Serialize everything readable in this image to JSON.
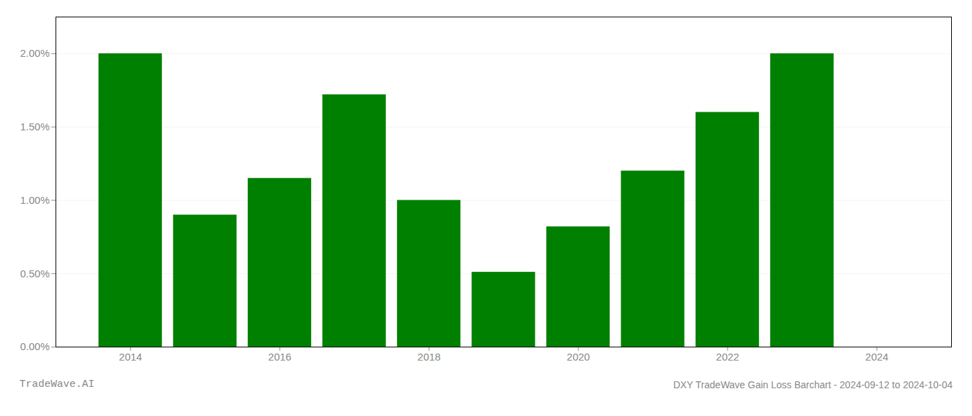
{
  "chart_data": {
    "type": "bar",
    "title": "DXY TradeWave Gain Loss Barchart - 2024-09-12 to 2024-10-04",
    "annotations": [
      "TradeWave.AI"
    ],
    "x": [
      2014,
      2015,
      2016,
      2017,
      2018,
      2019,
      2020,
      2021,
      2022,
      2023
    ],
    "values": [
      0.02,
      0.009,
      0.0115,
      0.0172,
      0.01,
      0.0051,
      0.0082,
      0.012,
      0.016,
      0.02
    ],
    "color": "#008000",
    "xlim": [
      2013,
      2025
    ],
    "xticks": [
      2014,
      2016,
      2018,
      2020,
      2022,
      2024
    ],
    "ylim": [
      0,
      0.0225
    ],
    "yticks": [
      {
        "value": 0,
        "label": "0.00%"
      },
      {
        "value": 0.005,
        "label": "0.50%"
      },
      {
        "value": 0.01,
        "label": "1.00%"
      },
      {
        "value": 0.015,
        "label": "1.50%"
      },
      {
        "value": 0.02,
        "label": "2.00%"
      }
    ],
    "grid": true
  }
}
